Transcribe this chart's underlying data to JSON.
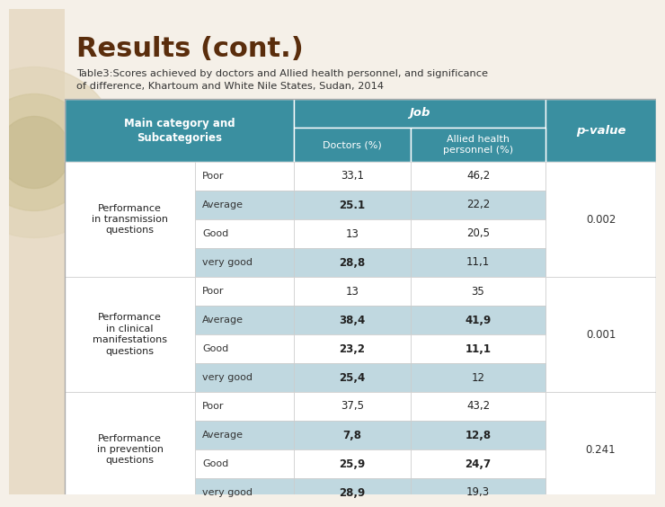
{
  "title": "Results (cont.)",
  "subtitle_line1": "Table3:Scores achieved by doctors and Allied health personnel, and significance",
  "subtitle_line2": "of difference, Khartoum and White Nile States, Sudan, 2014",
  "title_color": "#5a2d0c",
  "subtitle_color": "#333333",
  "header_bg": "#3a8fa0",
  "header_text_color": "#ffffff",
  "col1_header": "Main category and\nSubcategories",
  "col_job": "Job",
  "col_doctors": "Doctors (%)",
  "col_allied": "Allied health\npersonnel (%)",
  "col_pvalue": "p-value",
  "row_odd_bg": "#ffffff",
  "row_even_bg": "#c0d8e0",
  "bg_color": "#f5f0e8",
  "left_strip_color": "#e8dcc8",
  "categories": [
    "Performance\nin transmission\nquestions",
    "Performance\nin clinical\nmanifestations\nquestions",
    "Performance\nin prevention\nquestions"
  ],
  "subcategories": [
    "Poor",
    "Average",
    "Good",
    "very good"
  ],
  "doctors_data": [
    [
      "33,1",
      "25.1",
      "13",
      "28,8"
    ],
    [
      "13",
      "38,4",
      "23,2",
      "25,4"
    ],
    [
      "37,5",
      "7,8",
      "25,9",
      "28,9"
    ]
  ],
  "allied_data": [
    [
      "46,2",
      "22,2",
      "20,5",
      "11,1"
    ],
    [
      "35",
      "41,9",
      "11,1",
      "12"
    ],
    [
      "43,2",
      "12,8",
      "24,7",
      "19,3"
    ]
  ],
  "pvalues": [
    "0.002",
    "0.001",
    "0.241"
  ],
  "bold_doctors": {
    "0": [
      1,
      3
    ],
    "1": [
      1,
      2,
      3
    ],
    "2": [
      1,
      2,
      3
    ]
  },
  "bold_allied": {
    "0": [],
    "1": [
      1,
      2
    ],
    "2": [
      1,
      2
    ]
  }
}
